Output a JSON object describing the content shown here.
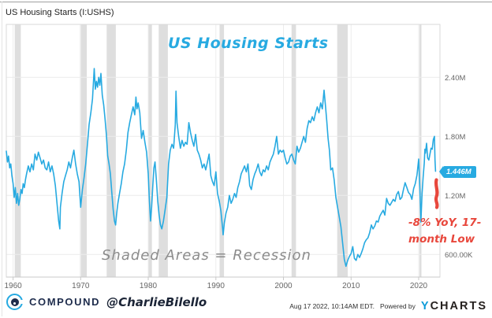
{
  "header": {
    "title": "US Housing Starts (I:USHS)"
  },
  "annotations": {
    "chart_title": "US Housing Starts",
    "recession_note": "Shaded Areas = Recession",
    "yoy_note_line1": "-8% YoY, 17-",
    "yoy_note_line2": "month Low",
    "badge_value": "1.446M"
  },
  "footer": {
    "brand": "COMPOUND",
    "handle": "@CharlieBilello",
    "timestamp": "Aug 17 2022, 10:14AM EDT.",
    "powered_by": "Powered by",
    "ycharts_y": "Y",
    "ycharts_rest": "CHARTS"
  },
  "colors": {
    "accent": "#27AAE1",
    "red": "#E8473C",
    "band": "#DEDEDE",
    "grid": "#ECECEC",
    "border": "#DADADA",
    "axis": "#C9C9C9",
    "tick_text": "#666666",
    "navy": "#1E2C4C",
    "ycblue": "#0D9BD8"
  },
  "chart_data": {
    "type": "line",
    "title": "US Housing Starts",
    "series_name": "US Housing Starts (I:USHS)",
    "last_value": 1.446,
    "last_value_label": "1.446M",
    "x_range": [
      1959.0,
      2022.8
    ],
    "ylim_millions": [
      0.37,
      2.94
    ],
    "grid": true,
    "x_ticks": [
      1960,
      1970,
      1980,
      1990,
      2000,
      2010,
      2020
    ],
    "y_ticks": [
      {
        "value": 0.6,
        "label": "600.00K"
      },
      {
        "value": 1.2,
        "label": "1.20M"
      },
      {
        "value": 1.8,
        "label": "1.80M"
      },
      {
        "value": 2.4,
        "label": "2.40M"
      }
    ],
    "recessions": [
      [
        1960.25,
        1961.15
      ],
      [
        1969.9,
        1970.9
      ],
      [
        1973.85,
        1975.2
      ],
      [
        1980.0,
        1980.55
      ],
      [
        1981.55,
        1982.9
      ],
      [
        1990.55,
        1991.2
      ],
      [
        2001.2,
        2001.85
      ],
      [
        2007.95,
        2009.5
      ],
      [
        2020.1,
        2020.4
      ]
    ],
    "points": [
      [
        1959.0,
        1.65
      ],
      [
        1959.17,
        1.54
      ],
      [
        1959.33,
        1.6
      ],
      [
        1959.5,
        1.48
      ],
      [
        1959.67,
        1.52
      ],
      [
        1959.83,
        1.4
      ],
      [
        1960.0,
        1.32
      ],
      [
        1960.17,
        1.18
      ],
      [
        1960.33,
        1.28
      ],
      [
        1960.5,
        1.12
      ],
      [
        1960.67,
        1.22
      ],
      [
        1960.83,
        1.1
      ],
      [
        1961.0,
        1.16
      ],
      [
        1961.17,
        1.26
      ],
      [
        1961.33,
        1.22
      ],
      [
        1961.5,
        1.32
      ],
      [
        1961.67,
        1.28
      ],
      [
        1961.83,
        1.36
      ],
      [
        1962.0,
        1.42
      ],
      [
        1962.25,
        1.5
      ],
      [
        1962.5,
        1.44
      ],
      [
        1962.75,
        1.52
      ],
      [
        1963.0,
        1.46
      ],
      [
        1963.25,
        1.62
      ],
      [
        1963.5,
        1.56
      ],
      [
        1963.75,
        1.64
      ],
      [
        1964.0,
        1.58
      ],
      [
        1964.25,
        1.52
      ],
      [
        1964.5,
        1.56
      ],
      [
        1964.75,
        1.48
      ],
      [
        1965.0,
        1.46
      ],
      [
        1965.25,
        1.54
      ],
      [
        1965.5,
        1.44
      ],
      [
        1965.75,
        1.5
      ],
      [
        1966.0,
        1.42
      ],
      [
        1966.25,
        1.3
      ],
      [
        1966.5,
        1.12
      ],
      [
        1966.75,
        0.94
      ],
      [
        1966.92,
        0.86
      ],
      [
        1967.0,
        1.08
      ],
      [
        1967.25,
        1.22
      ],
      [
        1967.5,
        1.34
      ],
      [
        1967.75,
        1.4
      ],
      [
        1968.0,
        1.46
      ],
      [
        1968.25,
        1.54
      ],
      [
        1968.5,
        1.48
      ],
      [
        1968.75,
        1.58
      ],
      [
        1969.0,
        1.66
      ],
      [
        1969.25,
        1.52
      ],
      [
        1969.5,
        1.42
      ],
      [
        1969.75,
        1.34
      ],
      [
        1970.0,
        1.08
      ],
      [
        1970.25,
        1.26
      ],
      [
        1970.5,
        1.38
      ],
      [
        1970.75,
        1.52
      ],
      [
        1971.0,
        1.72
      ],
      [
        1971.25,
        1.92
      ],
      [
        1971.5,
        2.04
      ],
      [
        1971.75,
        2.18
      ],
      [
        1972.0,
        2.49
      ],
      [
        1972.17,
        2.28
      ],
      [
        1972.33,
        2.36
      ],
      [
        1972.5,
        2.3
      ],
      [
        1972.67,
        2.4
      ],
      [
        1972.83,
        2.32
      ],
      [
        1973.0,
        2.44
      ],
      [
        1973.2,
        2.22
      ],
      [
        1973.4,
        2.12
      ],
      [
        1973.6,
        1.98
      ],
      [
        1973.8,
        1.82
      ],
      [
        1974.0,
        1.6
      ],
      [
        1974.2,
        1.52
      ],
      [
        1974.4,
        1.42
      ],
      [
        1974.6,
        1.24
      ],
      [
        1974.8,
        1.06
      ],
      [
        1975.0,
        0.94
      ],
      [
        1975.17,
        0.9
      ],
      [
        1975.33,
        1.02
      ],
      [
        1975.5,
        1.12
      ],
      [
        1975.75,
        1.22
      ],
      [
        1976.0,
        1.32
      ],
      [
        1976.25,
        1.44
      ],
      [
        1976.5,
        1.52
      ],
      [
        1976.75,
        1.66
      ],
      [
        1977.0,
        1.84
      ],
      [
        1977.25,
        1.94
      ],
      [
        1977.5,
        2.02
      ],
      [
        1977.75,
        2.1
      ],
      [
        1978.0,
        2.02
      ],
      [
        1978.17,
        2.2
      ],
      [
        1978.33,
        2.08
      ],
      [
        1978.5,
        2.14
      ],
      [
        1978.75,
        2.04
      ],
      [
        1979.0,
        1.78
      ],
      [
        1979.25,
        1.86
      ],
      [
        1979.5,
        1.74
      ],
      [
        1979.75,
        1.64
      ],
      [
        1980.0,
        1.42
      ],
      [
        1980.17,
        1.14
      ],
      [
        1980.33,
        0.94
      ],
      [
        1980.5,
        1.08
      ],
      [
        1980.67,
        1.3
      ],
      [
        1980.83,
        1.48
      ],
      [
        1981.0,
        1.54
      ],
      [
        1981.2,
        1.36
      ],
      [
        1981.4,
        1.14
      ],
      [
        1981.6,
        1.0
      ],
      [
        1981.8,
        0.9
      ],
      [
        1982.0,
        0.86
      ],
      [
        1982.25,
        0.94
      ],
      [
        1982.5,
        1.06
      ],
      [
        1982.75,
        1.18
      ],
      [
        1983.0,
        1.52
      ],
      [
        1983.25,
        1.66
      ],
      [
        1983.5,
        1.72
      ],
      [
        1983.75,
        1.68
      ],
      [
        1984.0,
        1.92
      ],
      [
        1984.1,
        2.26
      ],
      [
        1984.25,
        1.94
      ],
      [
        1984.5,
        1.8
      ],
      [
        1984.75,
        1.68
      ],
      [
        1985.0,
        1.76
      ],
      [
        1985.25,
        1.7
      ],
      [
        1985.5,
        1.74
      ],
      [
        1985.75,
        1.72
      ],
      [
        1986.0,
        1.94
      ],
      [
        1986.25,
        1.84
      ],
      [
        1986.5,
        1.76
      ],
      [
        1986.75,
        1.7
      ],
      [
        1987.0,
        1.82
      ],
      [
        1987.25,
        1.66
      ],
      [
        1987.5,
        1.62
      ],
      [
        1987.75,
        1.56
      ],
      [
        1988.0,
        1.48
      ],
      [
        1988.25,
        1.52
      ],
      [
        1988.5,
        1.46
      ],
      [
        1988.75,
        1.54
      ],
      [
        1989.0,
        1.62
      ],
      [
        1989.25,
        1.4
      ],
      [
        1989.5,
        1.34
      ],
      [
        1989.75,
        1.3
      ],
      [
        1990.0,
        1.44
      ],
      [
        1990.25,
        1.22
      ],
      [
        1990.5,
        1.14
      ],
      [
        1990.75,
        1.04
      ],
      [
        1991.0,
        0.86
      ],
      [
        1991.08,
        0.8
      ],
      [
        1991.25,
        0.92
      ],
      [
        1991.5,
        1.02
      ],
      [
        1991.75,
        1.08
      ],
      [
        1992.0,
        1.2
      ],
      [
        1992.25,
        1.12
      ],
      [
        1992.5,
        1.16
      ],
      [
        1992.75,
        1.22
      ],
      [
        1993.0,
        1.18
      ],
      [
        1993.25,
        1.28
      ],
      [
        1993.5,
        1.34
      ],
      [
        1993.75,
        1.42
      ],
      [
        1994.0,
        1.46
      ],
      [
        1994.25,
        1.5
      ],
      [
        1994.5,
        1.44
      ],
      [
        1994.75,
        1.52
      ],
      [
        1995.0,
        1.3
      ],
      [
        1995.25,
        1.26
      ],
      [
        1995.5,
        1.36
      ],
      [
        1995.75,
        1.42
      ],
      [
        1996.0,
        1.46
      ],
      [
        1996.25,
        1.52
      ],
      [
        1996.5,
        1.44
      ],
      [
        1996.75,
        1.4
      ],
      [
        1997.0,
        1.46
      ],
      [
        1997.25,
        1.44
      ],
      [
        1997.5,
        1.5
      ],
      [
        1997.75,
        1.46
      ],
      [
        1998.0,
        1.54
      ],
      [
        1998.25,
        1.58
      ],
      [
        1998.5,
        1.62
      ],
      [
        1998.75,
        1.7
      ],
      [
        1999.0,
        1.8
      ],
      [
        1999.25,
        1.62
      ],
      [
        1999.5,
        1.66
      ],
      [
        1999.75,
        1.64
      ],
      [
        2000.0,
        1.66
      ],
      [
        2000.25,
        1.58
      ],
      [
        2000.5,
        1.52
      ],
      [
        2000.75,
        1.54
      ],
      [
        2001.0,
        1.6
      ],
      [
        2001.25,
        1.62
      ],
      [
        2001.5,
        1.56
      ],
      [
        2001.75,
        1.52
      ],
      [
        2002.0,
        1.7
      ],
      [
        2002.25,
        1.64
      ],
      [
        2002.5,
        1.68
      ],
      [
        2002.75,
        1.74
      ],
      [
        2003.0,
        1.8
      ],
      [
        2003.25,
        1.74
      ],
      [
        2003.5,
        1.88
      ],
      [
        2003.75,
        1.96
      ],
      [
        2004.0,
        1.94
      ],
      [
        2004.25,
        2.0
      ],
      [
        2004.5,
        1.96
      ],
      [
        2004.75,
        2.04
      ],
      [
        2005.0,
        2.1
      ],
      [
        2005.25,
        2.04
      ],
      [
        2005.5,
        2.14
      ],
      [
        2005.75,
        2.08
      ],
      [
        2006.0,
        2.27
      ],
      [
        2006.2,
        2.12
      ],
      [
        2006.4,
        1.96
      ],
      [
        2006.6,
        1.78
      ],
      [
        2006.8,
        1.66
      ],
      [
        2007.0,
        1.46
      ],
      [
        2007.25,
        1.48
      ],
      [
        2007.5,
        1.36
      ],
      [
        2007.75,
        1.18
      ],
      [
        2008.0,
        1.08
      ],
      [
        2008.25,
        0.98
      ],
      [
        2008.5,
        0.88
      ],
      [
        2008.75,
        0.72
      ],
      [
        2009.0,
        0.55
      ],
      [
        2009.25,
        0.48
      ],
      [
        2009.5,
        0.54
      ],
      [
        2009.75,
        0.58
      ],
      [
        2010.0,
        0.61
      ],
      [
        2010.25,
        0.68
      ],
      [
        2010.5,
        0.56
      ],
      [
        2010.75,
        0.54
      ],
      [
        2011.0,
        0.6
      ],
      [
        2011.25,
        0.57
      ],
      [
        2011.5,
        0.61
      ],
      [
        2011.75,
        0.66
      ],
      [
        2012.0,
        0.72
      ],
      [
        2012.25,
        0.75
      ],
      [
        2012.5,
        0.77
      ],
      [
        2012.75,
        0.82
      ],
      [
        2013.0,
        0.9
      ],
      [
        2013.25,
        0.86
      ],
      [
        2013.5,
        0.89
      ],
      [
        2013.75,
        0.94
      ],
      [
        2014.0,
        0.93
      ],
      [
        2014.25,
        0.99
      ],
      [
        2014.5,
        1.02
      ],
      [
        2014.75,
        1.05
      ],
      [
        2015.0,
        1.0
      ],
      [
        2015.25,
        1.17
      ],
      [
        2015.5,
        1.12
      ],
      [
        2015.75,
        1.1
      ],
      [
        2016.0,
        1.13
      ],
      [
        2016.25,
        1.16
      ],
      [
        2016.5,
        1.14
      ],
      [
        2016.75,
        1.21
      ],
      [
        2017.0,
        1.24
      ],
      [
        2017.25,
        1.16
      ],
      [
        2017.5,
        1.18
      ],
      [
        2017.75,
        1.26
      ],
      [
        2018.0,
        1.33
      ],
      [
        2018.25,
        1.28
      ],
      [
        2018.5,
        1.23
      ],
      [
        2018.75,
        1.21
      ],
      [
        2019.0,
        1.16
      ],
      [
        2019.25,
        1.27
      ],
      [
        2019.5,
        1.32
      ],
      [
        2019.75,
        1.41
      ],
      [
        2020.0,
        1.57
      ],
      [
        2020.17,
        1.27
      ],
      [
        2020.33,
        0.93
      ],
      [
        2020.5,
        1.22
      ],
      [
        2020.67,
        1.39
      ],
      [
        2020.83,
        1.53
      ],
      [
        2020.92,
        1.67
      ],
      [
        2021.0,
        1.63
      ],
      [
        2021.17,
        1.73
      ],
      [
        2021.33,
        1.58
      ],
      [
        2021.5,
        1.56
      ],
      [
        2021.67,
        1.62
      ],
      [
        2021.83,
        1.68
      ],
      [
        2022.0,
        1.67
      ],
      [
        2022.17,
        1.77
      ],
      [
        2022.33,
        1.8
      ],
      [
        2022.42,
        1.56
      ],
      [
        2022.5,
        1.446
      ]
    ]
  }
}
